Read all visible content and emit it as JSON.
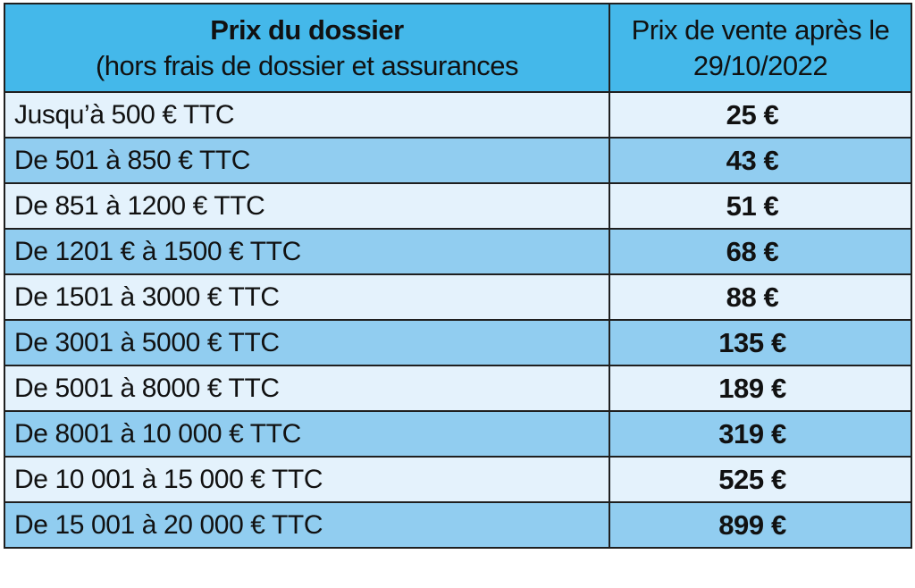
{
  "header": {
    "col1_title": "Prix du dossier",
    "col1_subtitle": "(hors frais de dossier et assurances",
    "col2_title": "Prix de vente après le 29/10/2022"
  },
  "rows": [
    {
      "range": "Jusqu’à 500 € TTC",
      "price": "25 €"
    },
    {
      "range": "De 501 à 850 € TTC",
      "price": "43 €"
    },
    {
      "range": "De 851 à 1200 € TTC",
      "price": "51 €"
    },
    {
      "range": "De 1201 € à 1500 € TTC",
      "price": "68 €"
    },
    {
      "range": "De 1501 à 3000 € TTC",
      "price": "88 €"
    },
    {
      "range": "De 3001 à 5000 € TTC",
      "price": "135 €"
    },
    {
      "range": "De 5001 à 8000 € TTC",
      "price": "189 €"
    },
    {
      "range": "De 8001 à 10 000 € TTC",
      "price": "319 €"
    },
    {
      "range": "De 10 001 à 15 000 € TTC",
      "price": "525 €"
    },
    {
      "range": "De 15 001 à 20 000 € TTC",
      "price": "899 €"
    }
  ],
  "colors": {
    "header_bg": "#44b8ea",
    "row_light": "#e4f2fc",
    "row_dark": "#91cdf0",
    "border": "#1f1f1f"
  }
}
